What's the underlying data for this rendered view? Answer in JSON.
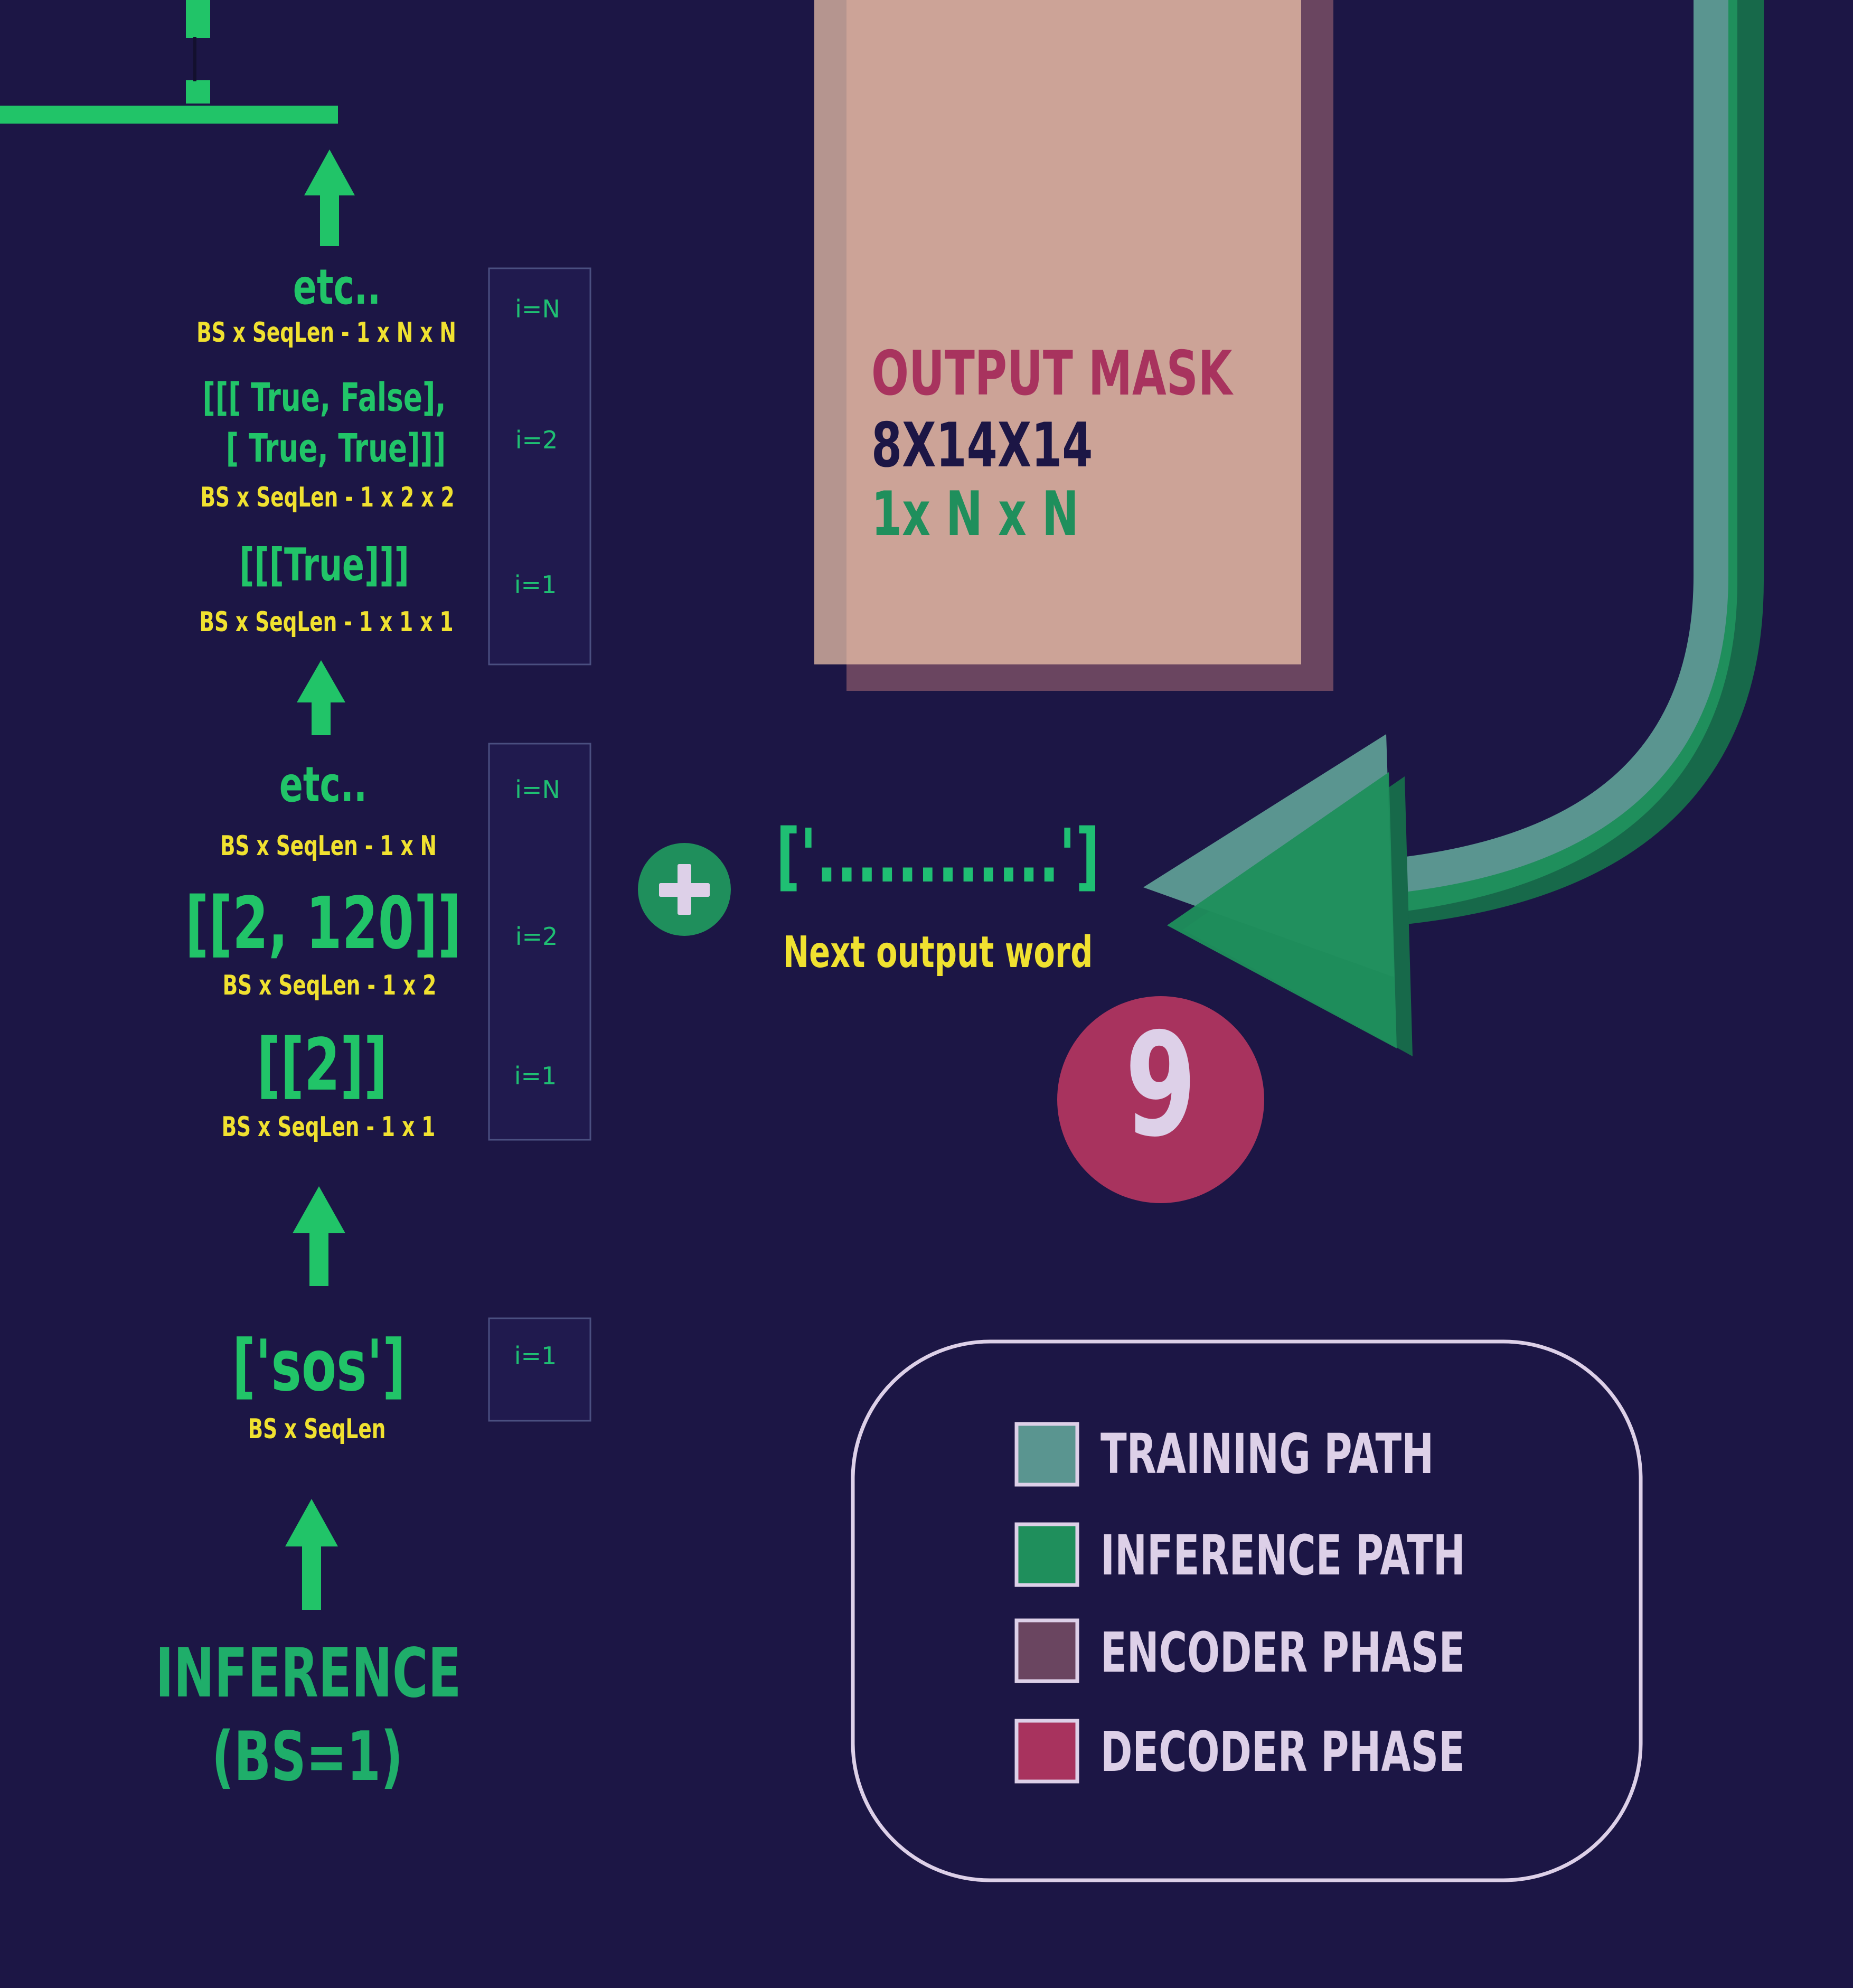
{
  "colors": {
    "background": "#1c1645",
    "training_path": "#5a9590",
    "inference_path": "#1f8f5c",
    "encoder_phase": "#6a4560",
    "decoder_phase": "#a8335e",
    "label_green": "#21c468",
    "shape_yellow": "#f0e130",
    "legend_text": "#ddd0e8"
  },
  "inference_stack": {
    "title_line1": "INFERENCE",
    "title_line2": "(BS=1)",
    "sos": {
      "value": "['sos']",
      "shape": "BS x SeqLen",
      "index": "i=1"
    },
    "tokens": {
      "etc": "etc..",
      "etc_shape": "BS x SeqLen -  1 x N",
      "i2_value": "[[2, 120]]",
      "i2_shape": "BS x SeqLen -  1 x 2",
      "i1_value": "[[2]]",
      "i1_shape": "BS x SeqLen -  1 x 1",
      "index_n": "i=N",
      "index_2": "i=2",
      "index_1": "i=1"
    },
    "masks": {
      "etc": "etc..",
      "etc_shape": "BS x SeqLen -  1 x  N x N",
      "i2_line1": "[[[ True, False],",
      "i2_line2": "[ True,  True]]]",
      "i2_shape": "BS x SeqLen -  1 x  2 x 2",
      "i1_value": "[[[True]]]",
      "i1_shape": "BS x SeqLen -  1 x  1 x 1",
      "index_n": "i=N",
      "index_2": "i=2",
      "index_1": "i=1"
    }
  },
  "output_mask": {
    "title": "OUTPUT MASK",
    "training_shape": "8X14X14",
    "inference_shape": "1x N x N"
  },
  "next_word": {
    "placeholder": "['............']",
    "label": "Next output word",
    "plus_symbol": "+"
  },
  "step_badge": {
    "number": "9"
  },
  "legend": {
    "items": [
      {
        "label": "TRAINING PATH",
        "color": "#5a9590"
      },
      {
        "label": "INFERENCE PATH",
        "color": "#1f8f5c"
      },
      {
        "label": "ENCODER PHASE",
        "color": "#6a4560"
      },
      {
        "label": "DECODER PHASE",
        "color": "#a8335e"
      }
    ]
  }
}
